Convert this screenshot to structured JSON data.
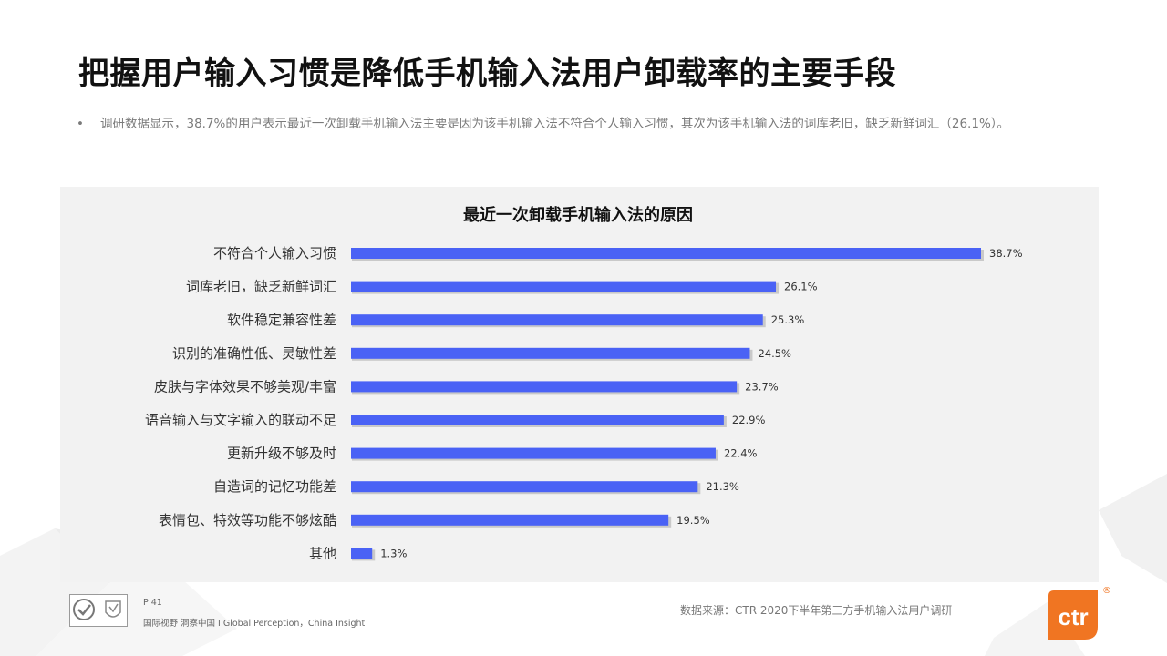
{
  "slide": {
    "title": "把握用户输入习惯是降低手机输入法用户卸载率的主要手段",
    "bullet": "•",
    "summary": "调研数据显示，38.7%的用户表示最近一次卸载手机输入法主要是因为该手机输入法不符合个人输入习惯，其次为该手机输入法的词库老旧，缺乏新鲜词汇（26.1%）。"
  },
  "chart_data": {
    "type": "bar",
    "orientation": "horizontal",
    "title": "最近一次卸载手机输入法的原因",
    "categories": [
      "不符合个人输入习惯",
      "词库老旧，缺乏新鲜词汇",
      "软件稳定兼容性差",
      "识别的准确性低、灵敏性差",
      "皮肤与字体效果不够美观/丰富",
      "语音输入与文字输入的联动不足",
      "更新升级不够及时",
      "自造词的记忆功能差",
      "表情包、特效等功能不够炫酷",
      "其他"
    ],
    "values": [
      38.7,
      26.1,
      25.3,
      24.5,
      23.7,
      22.9,
      22.4,
      21.3,
      19.5,
      1.3
    ],
    "value_labels": [
      "38.7%",
      "26.1%",
      "25.3%",
      "24.5%",
      "23.7%",
      "22.9%",
      "22.4%",
      "21.3%",
      "19.5%",
      "1.3%"
    ],
    "unit": "%",
    "xlim": [
      0,
      38.7
    ],
    "grid": false,
    "legend": "none",
    "bar_color": "#4a62f5"
  },
  "footer": {
    "page": "P 41",
    "tagline": "国际视野 洞察中国 I Global Perception，China Insight",
    "source": "数据来源：CTR 2020下半年第三方手机输入法用户调研",
    "brand": "ctr",
    "brand_mark": "®",
    "brand_color": "#f07522"
  }
}
